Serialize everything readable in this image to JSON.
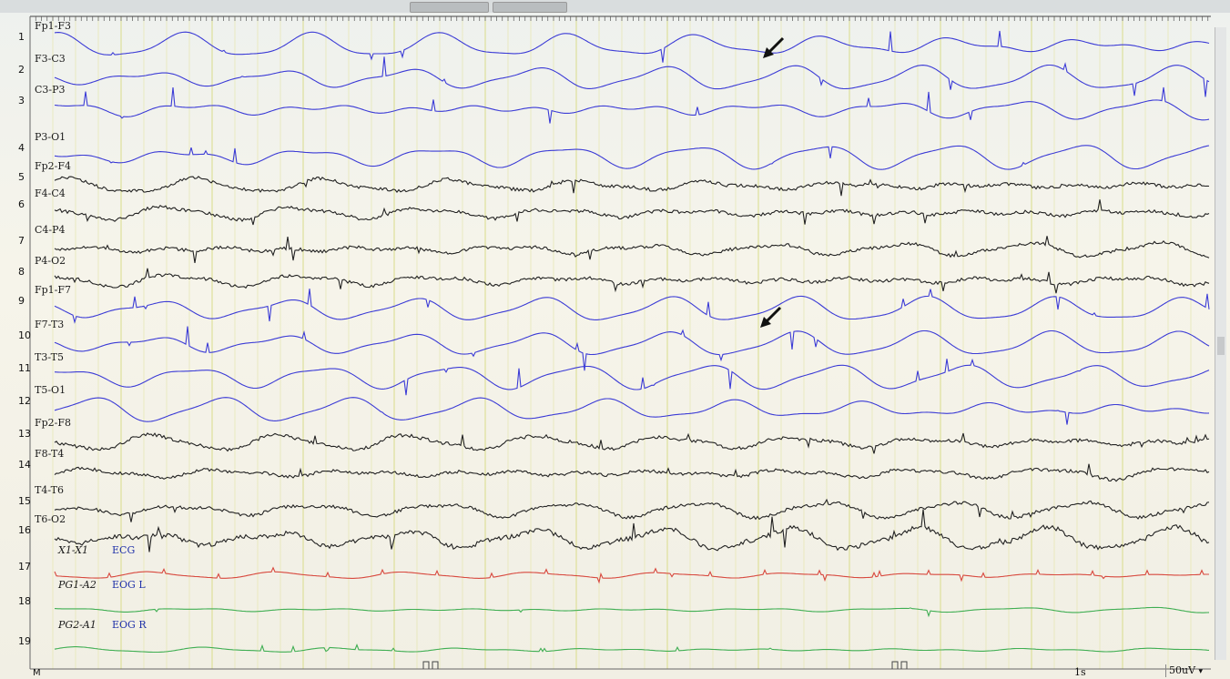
{
  "montage": {
    "channels": [
      {
        "num": "1",
        "label": "Fp1-F3",
        "color": "#3b3bd6"
      },
      {
        "num": "2",
        "label": "F3-C3",
        "color": "#3b3bd6"
      },
      {
        "num": "3",
        "label": "C3-P3",
        "color": "#3b3bd6"
      },
      {
        "num": "4",
        "label": "P3-O1",
        "color": "#3b3bd6"
      },
      {
        "num": "5",
        "label": "Fp2-F4",
        "color": "#222222"
      },
      {
        "num": "6",
        "label": "F4-C4",
        "color": "#222222"
      },
      {
        "num": "7",
        "label": "C4-P4",
        "color": "#222222"
      },
      {
        "num": "8",
        "label": "P4-O2",
        "color": "#222222"
      },
      {
        "num": "9",
        "label": "Fp1-F7",
        "color": "#3b3bd6"
      },
      {
        "num": "10",
        "label": "F7-T3",
        "color": "#3b3bd6"
      },
      {
        "num": "11",
        "label": "T3-T5",
        "color": "#3b3bd6"
      },
      {
        "num": "12",
        "label": "T5-O1",
        "color": "#3b3bd6"
      },
      {
        "num": "13",
        "label": "Fp2-F8",
        "color": "#222222"
      },
      {
        "num": "14",
        "label": "F8-T4",
        "color": "#222222"
      },
      {
        "num": "15",
        "label": "T4-T6",
        "color": "#222222"
      },
      {
        "num": "16",
        "label": "T6-O2",
        "color": "#222222"
      },
      {
        "num": "17",
        "label": "X1-X1",
        "tag": "ECG",
        "color": "#d8483e"
      },
      {
        "num": "18",
        "label": "PG1-A2",
        "tag": "EOG L",
        "color": "#3fae52"
      },
      {
        "num": "19",
        "label": "PG2-A1",
        "tag": "EOG R",
        "color": "#3fae52"
      }
    ]
  },
  "footer": {
    "timescale": "1s",
    "sensitivity": "50uV",
    "sensitivity_arrow": "▾",
    "corner_mark": "M"
  },
  "annotation": {
    "arrow_icon": "arrow-down-left-icon"
  }
}
